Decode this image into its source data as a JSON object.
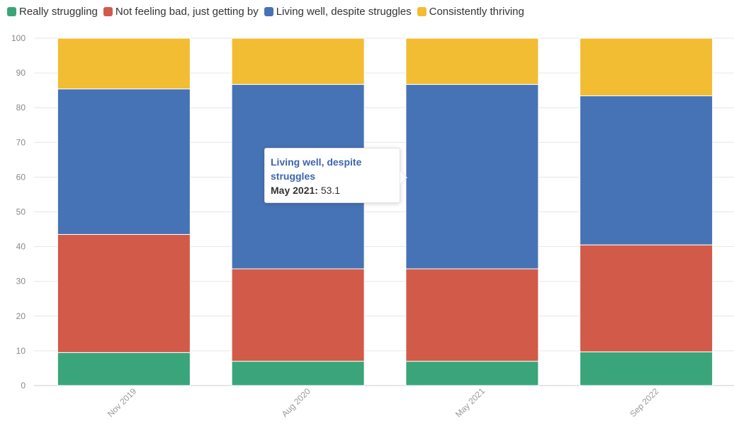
{
  "chart_data": {
    "type": "bar",
    "stacked": true,
    "categories": [
      "Nov 2019",
      "Aug 2020",
      "May 2021",
      "Sep 2022"
    ],
    "series": [
      {
        "name": "Really struggling",
        "color": "#3aa57a",
        "values": [
          9.5,
          7,
          7,
          9.7
        ]
      },
      {
        "name": "Not feeling bad, just getting by",
        "color": "#d15a49",
        "values": [
          34,
          26.6,
          26.6,
          30.8
        ]
      },
      {
        "name": "Living well, despite struggles",
        "color": "#4673b5",
        "values": [
          41.9,
          53.1,
          53.1,
          42.9
        ]
      },
      {
        "name": "Consistently thriving",
        "color": "#f2bc33",
        "values": [
          14.6,
          13.3,
          13.3,
          16.6
        ]
      }
    ],
    "yticks": [
      0,
      10,
      20,
      30,
      40,
      50,
      60,
      70,
      80,
      90,
      100
    ],
    "ylim": [
      0,
      100
    ],
    "grid": true,
    "legend_position": "top-left"
  },
  "tooltip": {
    "series": "Living well, despite struggles",
    "category_label": "May 2021:",
    "value": "53.1"
  }
}
